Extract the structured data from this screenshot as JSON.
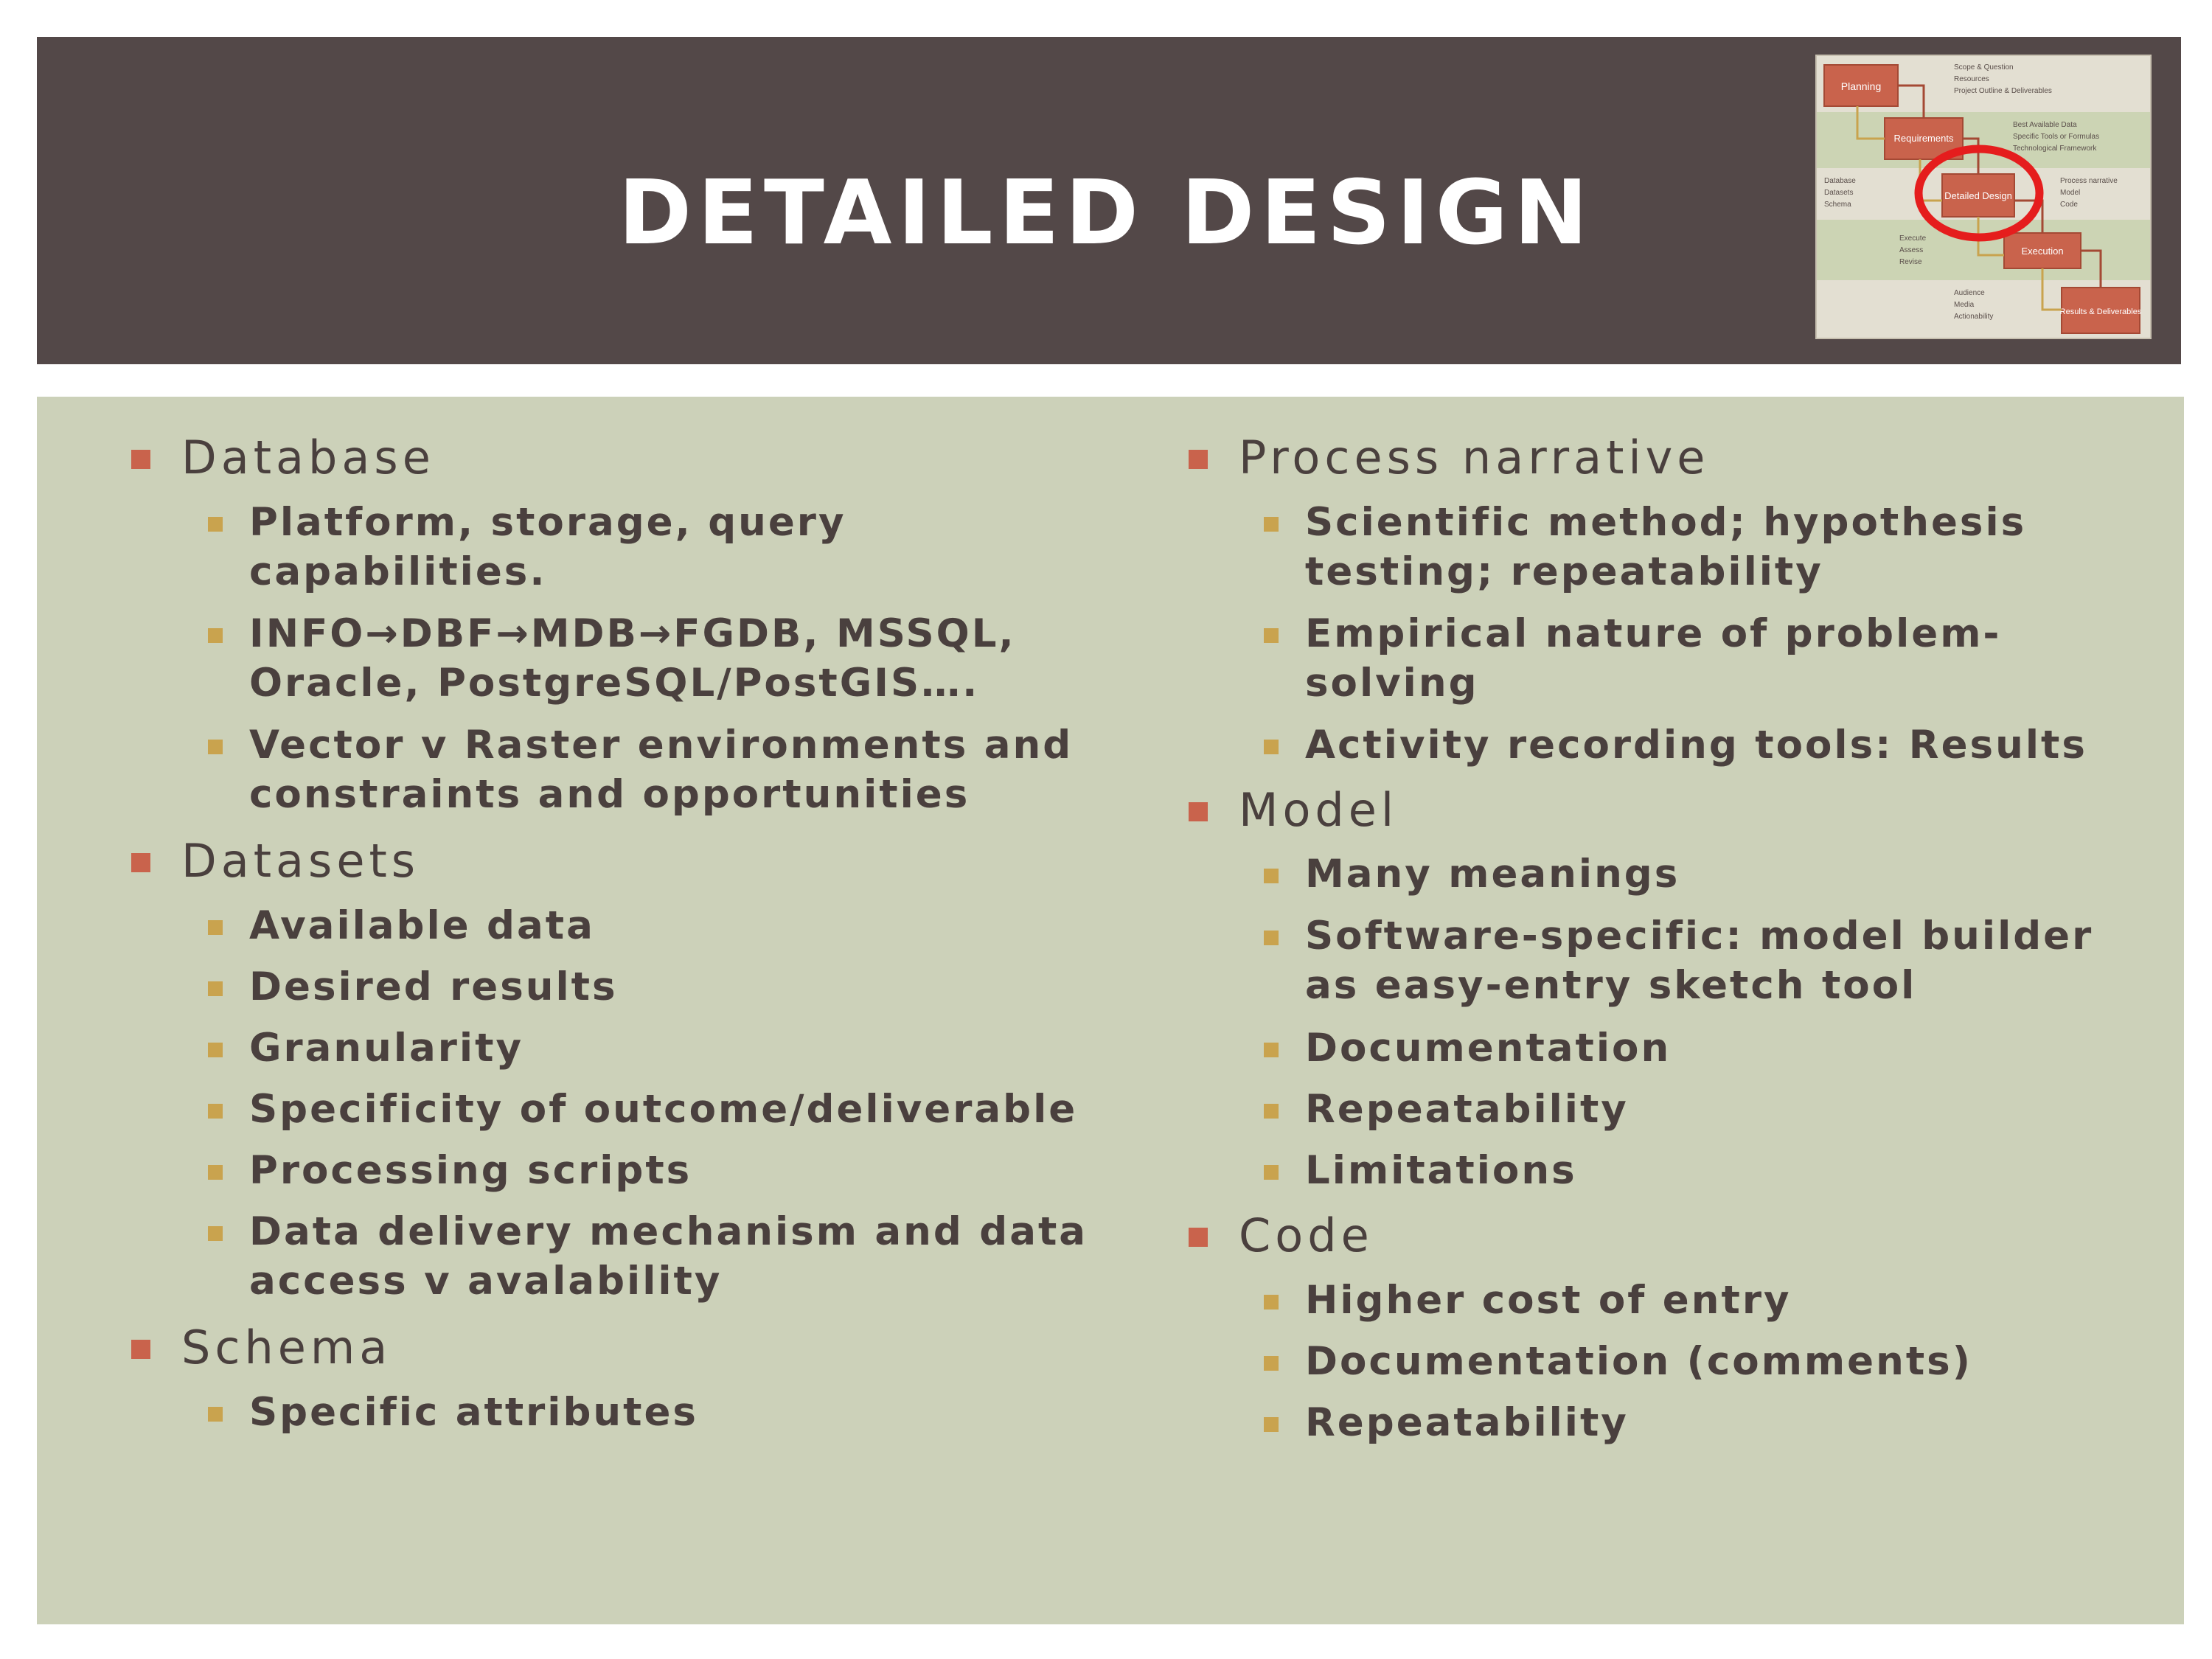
{
  "slide": {
    "title": "DETAILED DESIGN"
  },
  "thumbnail": {
    "steps": [
      "Planning",
      "Requirements",
      "Detailed Design",
      "Execution",
      "Results & Deliverables"
    ],
    "notes_planning": [
      "Scope & Question",
      "Resources",
      "Project Outline & Deliverables"
    ],
    "notes_requirements": [
      "Best Available Data",
      "Specific Tools or Formulas",
      "Technological Framework"
    ],
    "notes_design_left": [
      "Database",
      "Datasets",
      "Schema"
    ],
    "notes_design_right": [
      "Process narrative",
      "Model",
      "Code"
    ],
    "notes_execution": [
      "Execute",
      "Assess",
      "Revise"
    ],
    "notes_results": [
      "Audience",
      "Media",
      "Actionability"
    ]
  },
  "left_column": {
    "database": {
      "label": "Database",
      "items": [
        "Platform, storage, query capabilities.",
        "INFO→DBF→MDB→FGDB, MSSQL, Oracle, PostgreSQL/PostGIS….",
        "Vector v Raster environments and constraints and opportunities"
      ]
    },
    "datasets": {
      "label": "Datasets",
      "items": [
        "Available data",
        "Desired results",
        "Granularity",
        "Specificity of outcome/deliverable",
        "Processing scripts",
        "Data delivery mechanism and data access v avalability"
      ]
    },
    "schema": {
      "label": "Schema",
      "items": [
        "Specific attributes"
      ]
    }
  },
  "right_column": {
    "process": {
      "label": "Process narrative",
      "items": [
        "Scientific method; hypothesis testing; repeatability",
        "Empirical nature of problem-solving",
        "Activity recording tools: Results"
      ]
    },
    "model": {
      "label": "Model",
      "items": [
        "Many meanings",
        "Software-specific: model builder as easy-entry sketch tool",
        "Documentation",
        "Repeatability",
        "Limitations"
      ]
    },
    "code": {
      "label": "Code",
      "items": [
        "Higher cost of entry",
        "Documentation (comments)",
        "Repeatability"
      ]
    }
  },
  "colors": {
    "title_band": "#534848",
    "content_band": "#ccd1b9",
    "text": "#4a403e",
    "bullet_l1": "#c9634c",
    "bullet_l2": "#c9a34e",
    "highlight_ring": "#e51d1d"
  }
}
